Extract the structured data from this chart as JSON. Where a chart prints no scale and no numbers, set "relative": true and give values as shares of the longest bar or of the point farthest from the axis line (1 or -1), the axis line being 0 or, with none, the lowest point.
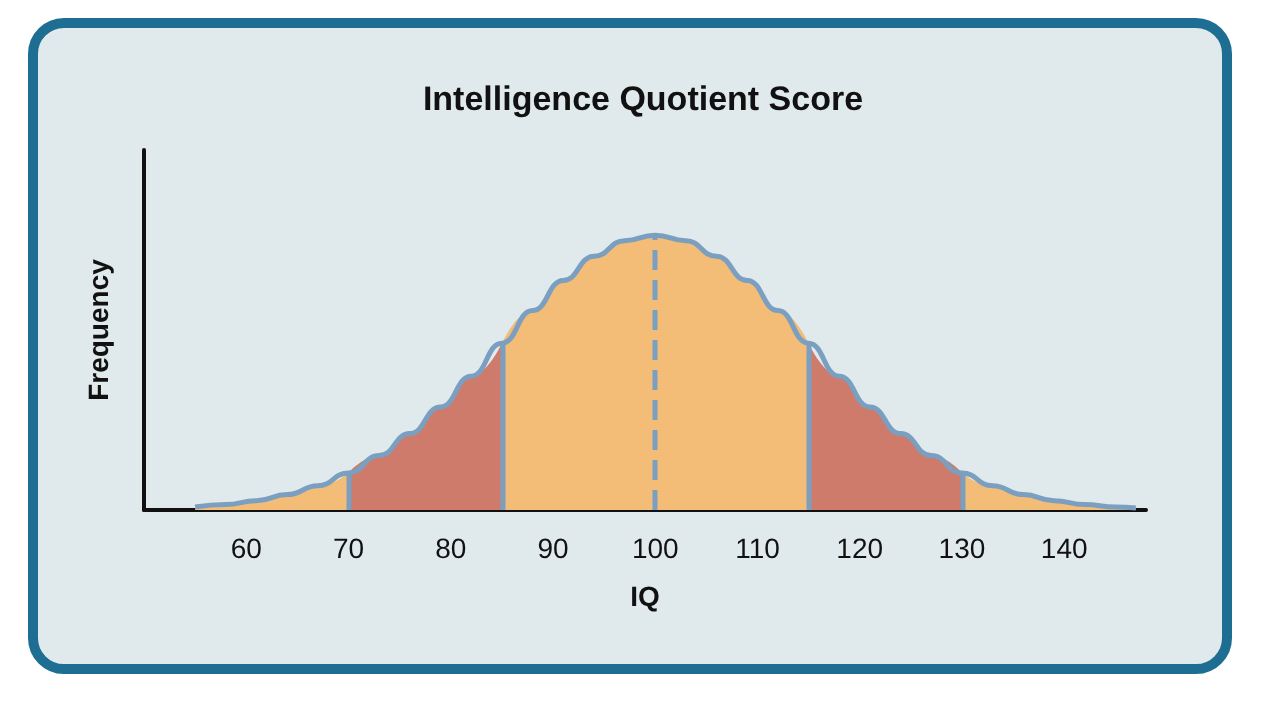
{
  "chart_data": {
    "type": "area",
    "title": "Intelligence Quotient Score",
    "xlabel": "IQ",
    "ylabel": "Frequency",
    "relative": true,
    "xlim": [
      50,
      148
    ],
    "xticks": [
      60,
      70,
      80,
      90,
      100,
      110,
      120,
      130,
      140
    ],
    "series": [
      {
        "color": "#f3bc77",
        "x": [
          55,
          58,
          61,
          64,
          67,
          70
        ],
        "values": [
          0.011,
          0.02,
          0.034,
          0.056,
          0.088,
          0.135
        ]
      },
      {
        "color": "#ce7b6b",
        "x": [
          70,
          73,
          76,
          79,
          82,
          85
        ],
        "values": [
          0.135,
          0.198,
          0.278,
          0.375,
          0.487,
          0.607
        ]
      },
      {
        "color": "#f3bc77",
        "x": [
          85,
          88,
          91,
          94,
          97,
          100,
          103,
          106,
          109,
          112,
          115
        ],
        "values": [
          0.607,
          0.726,
          0.835,
          0.923,
          0.98,
          1,
          0.98,
          0.923,
          0.835,
          0.726,
          0.607
        ]
      },
      {
        "color": "#ce7b6b",
        "x": [
          115,
          118,
          121,
          124,
          127,
          130
        ],
        "values": [
          0.607,
          0.487,
          0.375,
          0.278,
          0.198,
          0.135
        ]
      },
      {
        "color": "#f3bc77",
        "x": [
          130,
          133,
          136,
          139,
          142,
          145,
          147
        ],
        "values": [
          0.135,
          0.088,
          0.056,
          0.034,
          0.02,
          0.011,
          0.007
        ]
      },
      {
        "type": "line",
        "color": "#7b9fc0",
        "x": [
          55,
          58,
          61,
          64,
          67,
          70,
          73,
          76,
          79,
          82,
          85,
          88,
          91,
          94,
          97,
          100,
          103,
          106,
          109,
          112,
          115,
          118,
          121,
          124,
          127,
          130,
          133,
          136,
          139,
          142,
          145,
          147
        ],
        "values": [
          0.011,
          0.02,
          0.034,
          0.056,
          0.088,
          0.135,
          0.198,
          0.278,
          0.375,
          0.487,
          0.607,
          0.726,
          0.835,
          0.923,
          0.98,
          1,
          0.98,
          0.923,
          0.835,
          0.726,
          0.607,
          0.487,
          0.375,
          0.278,
          0.198,
          0.135,
          0.088,
          0.056,
          0.034,
          0.02,
          0.011,
          0.007
        ]
      }
    ],
    "ref_lines": [
      {
        "axis": "x",
        "value": 70,
        "color": "#7b9fc0",
        "line_style": "solid"
      },
      {
        "axis": "x",
        "value": 85,
        "color": "#7b9fc0",
        "line_style": "solid"
      },
      {
        "axis": "x",
        "value": 100,
        "color": "#7b9fc0",
        "line_style": "dashed"
      },
      {
        "axis": "x",
        "value": 115,
        "color": "#7b9fc0",
        "line_style": "solid"
      },
      {
        "axis": "x",
        "value": 130,
        "color": "#7b9fc0",
        "line_style": "solid"
      }
    ]
  }
}
